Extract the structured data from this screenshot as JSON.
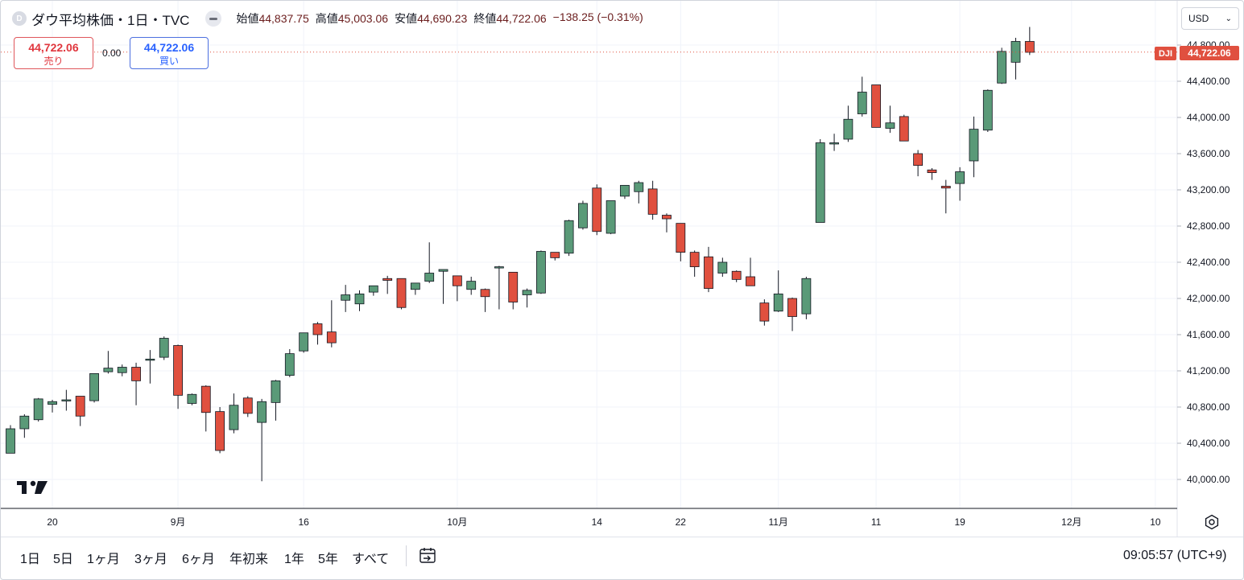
{
  "header": {
    "symbol_badge": "D",
    "title": "ダウ平均株価・1日・TVC",
    "ohlc": [
      {
        "label": "始値",
        "value": "44,837.75"
      },
      {
        "label": "高値",
        "value": "45,003.06"
      },
      {
        "label": "安値",
        "value": "44,690.23"
      },
      {
        "label": "終値",
        "value": "44,722.06"
      }
    ],
    "change": "−138.25 (−0.31%)"
  },
  "trade": {
    "sell_price": "44,722.06",
    "sell_label": "売り",
    "spread": "0.00",
    "buy_price": "44,722.06",
    "buy_label": "買い"
  },
  "currency": "USD",
  "price_line": {
    "symbol": "DJI",
    "value": "44,722.06",
    "price": 44722.06
  },
  "colors": {
    "up": "#5a9a78",
    "down": "#e0503f",
    "grid": "#f0f3fa",
    "price_line": "#e0503f"
  },
  "icons": {
    "logo": "tradingview-logo-icon",
    "settings": "settings-icon",
    "calendar": "calendar-goto-icon",
    "dropdown": "chevron-down-icon"
  },
  "ranges": [
    "1日",
    "5日",
    "1ヶ月",
    "3ヶ月",
    "6ヶ月",
    "年初来",
    "1年",
    "5年",
    "すべて"
  ],
  "clock": "09:05:57 (UTC+9)",
  "chart_data": {
    "type": "candlestick",
    "y_ticks": [
      "44,800.00",
      "44,400.00",
      "44,000.00",
      "43,600.00",
      "43,200.00",
      "42,800.00",
      "42,400.00",
      "42,000.00",
      "41,600.00",
      "41,200.00",
      "40,800.00",
      "40,400.00",
      "40,000.00"
    ],
    "y_tick_values": [
      44800,
      44400,
      44000,
      43600,
      43200,
      42800,
      42400,
      42000,
      41600,
      41200,
      40800,
      40400,
      40000
    ],
    "x_labels": [
      {
        "text": "20",
        "index": 3
      },
      {
        "text": "9月",
        "index": 12
      },
      {
        "text": "16",
        "index": 21
      },
      {
        "text": "10月",
        "index": 32
      },
      {
        "text": "14",
        "index": 42
      },
      {
        "text": "22",
        "index": 48
      },
      {
        "text": "11月",
        "index": 55
      },
      {
        "text": "11",
        "index": 62
      },
      {
        "text": "19",
        "index": 68
      },
      {
        "text": "12月",
        "index": 76
      },
      {
        "text": "10",
        "index": 82
      }
    ],
    "candles": [
      {
        "o": 40290,
        "h": 40600,
        "l": 40290,
        "c": 40560
      },
      {
        "o": 40560,
        "h": 40720,
        "l": 40460,
        "c": 40700
      },
      {
        "o": 40660,
        "h": 40900,
        "l": 40640,
        "c": 40890
      },
      {
        "o": 40830,
        "h": 40880,
        "l": 40740,
        "c": 40860
      },
      {
        "o": 40870,
        "h": 40990,
        "l": 40760,
        "c": 40880
      },
      {
        "o": 40920,
        "h": 40920,
        "l": 40590,
        "c": 40700
      },
      {
        "o": 40870,
        "h": 41170,
        "l": 40850,
        "c": 41170
      },
      {
        "o": 41190,
        "h": 41420,
        "l": 41170,
        "c": 41230
      },
      {
        "o": 41180,
        "h": 41270,
        "l": 41140,
        "c": 41240
      },
      {
        "o": 41240,
        "h": 41290,
        "l": 40820,
        "c": 41090
      },
      {
        "o": 41320,
        "h": 41430,
        "l": 41060,
        "c": 41330
      },
      {
        "o": 41350,
        "h": 41580,
        "l": 41320,
        "c": 41560
      },
      {
        "o": 41480,
        "h": 41490,
        "l": 40780,
        "c": 40930
      },
      {
        "o": 40840,
        "h": 40950,
        "l": 40820,
        "c": 40940
      },
      {
        "o": 41030,
        "h": 41040,
        "l": 40530,
        "c": 40740
      },
      {
        "o": 40750,
        "h": 40800,
        "l": 40290,
        "c": 40320
      },
      {
        "o": 40550,
        "h": 40950,
        "l": 40510,
        "c": 40820
      },
      {
        "o": 40900,
        "h": 40920,
        "l": 40690,
        "c": 40730
      },
      {
        "o": 40630,
        "h": 40890,
        "l": 39980,
        "c": 40860
      },
      {
        "o": 40850,
        "h": 41100,
        "l": 40650,
        "c": 41090
      },
      {
        "o": 41150,
        "h": 41440,
        "l": 41130,
        "c": 41390
      },
      {
        "o": 41420,
        "h": 41580,
        "l": 41400,
        "c": 41620
      },
      {
        "o": 41720,
        "h": 41740,
        "l": 41490,
        "c": 41600
      },
      {
        "o": 41630,
        "h": 41980,
        "l": 41460,
        "c": 41510
      },
      {
        "o": 41980,
        "h": 42150,
        "l": 41850,
        "c": 42040
      },
      {
        "o": 41940,
        "h": 42090,
        "l": 41860,
        "c": 42050
      },
      {
        "o": 42070,
        "h": 42140,
        "l": 42030,
        "c": 42140
      },
      {
        "o": 42220,
        "h": 42250,
        "l": 42050,
        "c": 42200
      },
      {
        "o": 42220,
        "h": 42220,
        "l": 41880,
        "c": 41900
      },
      {
        "o": 42100,
        "h": 42170,
        "l": 42040,
        "c": 42170
      },
      {
        "o": 42190,
        "h": 42620,
        "l": 42170,
        "c": 42280
      },
      {
        "o": 42300,
        "h": 42310,
        "l": 41940,
        "c": 42320
      },
      {
        "o": 42250,
        "h": 42250,
        "l": 41970,
        "c": 42140
      },
      {
        "o": 42100,
        "h": 42240,
        "l": 42040,
        "c": 42190
      },
      {
        "o": 42100,
        "h": 42110,
        "l": 41850,
        "c": 42020
      },
      {
        "o": 42340,
        "h": 42360,
        "l": 41880,
        "c": 42350
      },
      {
        "o": 42290,
        "h": 42290,
        "l": 41880,
        "c": 41960
      },
      {
        "o": 42040,
        "h": 42110,
        "l": 41900,
        "c": 42090
      },
      {
        "o": 42060,
        "h": 42530,
        "l": 42050,
        "c": 42520
      },
      {
        "o": 42510,
        "h": 42500,
        "l": 42420,
        "c": 42450
      },
      {
        "o": 42500,
        "h": 42870,
        "l": 42470,
        "c": 42860
      },
      {
        "o": 42780,
        "h": 43080,
        "l": 42760,
        "c": 43050
      },
      {
        "o": 43220,
        "h": 43260,
        "l": 42700,
        "c": 42740
      },
      {
        "o": 42720,
        "h": 43080,
        "l": 42710,
        "c": 43080
      },
      {
        "o": 43130,
        "h": 43250,
        "l": 43100,
        "c": 43250
      },
      {
        "o": 43180,
        "h": 43300,
        "l": 43050,
        "c": 43280
      },
      {
        "o": 43210,
        "h": 43300,
        "l": 42870,
        "c": 42930
      },
      {
        "o": 42920,
        "h": 42940,
        "l": 42730,
        "c": 42880
      },
      {
        "o": 42830,
        "h": 42830,
        "l": 42410,
        "c": 42510
      },
      {
        "o": 42510,
        "h": 42530,
        "l": 42240,
        "c": 42350
      },
      {
        "o": 42460,
        "h": 42570,
        "l": 42070,
        "c": 42110
      },
      {
        "o": 42280,
        "h": 42450,
        "l": 42240,
        "c": 42400
      },
      {
        "o": 42300,
        "h": 42310,
        "l": 42180,
        "c": 42210
      },
      {
        "o": 42240,
        "h": 42450,
        "l": 42140,
        "c": 42140
      },
      {
        "o": 41950,
        "h": 41990,
        "l": 41700,
        "c": 41750
      },
      {
        "o": 41860,
        "h": 42310,
        "l": 41850,
        "c": 42050
      },
      {
        "o": 42000,
        "h": 42010,
        "l": 41640,
        "c": 41800
      },
      {
        "o": 41830,
        "h": 42240,
        "l": 41770,
        "c": 42220
      },
      {
        "o": 42840,
        "h": 43760,
        "l": 42840,
        "c": 43720
      },
      {
        "o": 43720,
        "h": 43820,
        "l": 43630,
        "c": 43720
      },
      {
        "o": 43760,
        "h": 44130,
        "l": 43730,
        "c": 43980
      },
      {
        "o": 44040,
        "h": 44450,
        "l": 44010,
        "c": 44280
      },
      {
        "o": 44360,
        "h": 44360,
        "l": 43890,
        "c": 43890
      },
      {
        "o": 43880,
        "h": 44130,
        "l": 43830,
        "c": 43940
      },
      {
        "o": 44010,
        "h": 44030,
        "l": 43740,
        "c": 43740
      },
      {
        "o": 43600,
        "h": 43640,
        "l": 43350,
        "c": 43470
      },
      {
        "o": 43420,
        "h": 43440,
        "l": 43310,
        "c": 43390
      },
      {
        "o": 43240,
        "h": 43310,
        "l": 42940,
        "c": 43220
      },
      {
        "o": 43270,
        "h": 43450,
        "l": 43080,
        "c": 43400
      },
      {
        "o": 43520,
        "h": 44010,
        "l": 43340,
        "c": 43870
      },
      {
        "o": 43860,
        "h": 44310,
        "l": 43840,
        "c": 44300
      },
      {
        "o": 44380,
        "h": 44770,
        "l": 44370,
        "c": 44730
      },
      {
        "o": 44610,
        "h": 44880,
        "l": 44420,
        "c": 44840
      },
      {
        "o": 44840,
        "h": 45000,
        "l": 44690,
        "c": 44720
      }
    ]
  }
}
